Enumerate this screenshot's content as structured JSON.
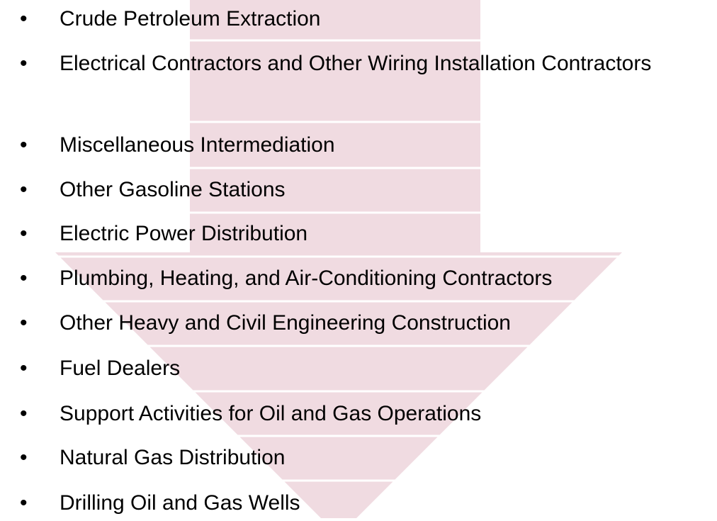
{
  "items": [
    "Crude Petroleum Extraction",
    "Electrical Contractors and Other Wiring Installation Contractors",
    "Miscellaneous Intermediation",
    "Other Gasoline Stations",
    "Electric Power Distribution",
    "Plumbing, Heating, and Air-Conditioning Contractors",
    "Other Heavy and Civil Engineering Construction",
    "Fuel Dealers",
    "Support Activities for Oil and Gas Operations",
    "Natural Gas Distribution",
    "Drilling Oil and Gas Wells"
  ]
}
